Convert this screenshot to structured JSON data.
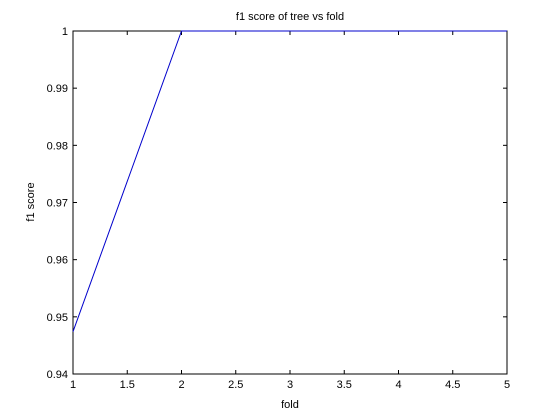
{
  "chart_data": {
    "type": "line",
    "title": "f1 score of tree vs fold",
    "xlabel": "fold",
    "ylabel": "f1 score",
    "xlim": [
      1,
      5
    ],
    "ylim": [
      0.94,
      1.0
    ],
    "xticks": [
      "1",
      "1.5",
      "2",
      "2.5",
      "3",
      "3.5",
      "4",
      "4.5",
      "5"
    ],
    "yticks": [
      "0.94",
      "0.95",
      "0.96",
      "0.97",
      "0.98",
      "0.99",
      "1"
    ],
    "grid": false,
    "series": [
      {
        "x": [
          1,
          2,
          3,
          4,
          5
        ],
        "values": [
          0.9474,
          1.0,
          1.0,
          1.0,
          1.0
        ],
        "color": "#0000cc"
      }
    ]
  }
}
